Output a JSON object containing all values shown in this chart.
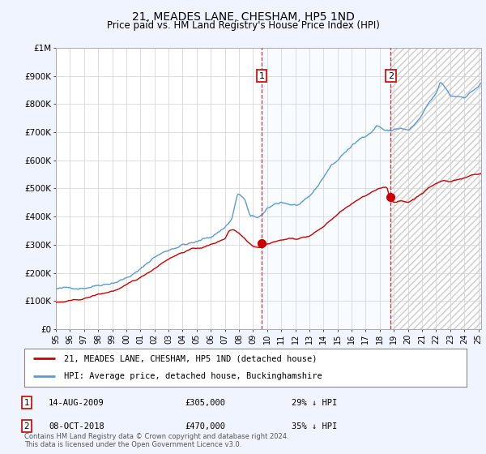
{
  "title": "21, MEADES LANE, CHESHAM, HP5 1ND",
  "subtitle": "Price paid vs. HM Land Registry's House Price Index (HPI)",
  "ytick_labels": [
    "£0",
    "£100K",
    "£200K",
    "£300K",
    "£400K",
    "£500K",
    "£600K",
    "£700K",
    "£800K",
    "£900K",
    "£1M"
  ],
  "yticks": [
    0,
    100000,
    200000,
    300000,
    400000,
    500000,
    600000,
    700000,
    800000,
    900000,
    1000000
  ],
  "hpi_color": "#5b9bd5",
  "price_color": "#cc0000",
  "annotation1_label": "1",
  "annotation1_date": "14-AUG-2009",
  "annotation1_price": "£305,000",
  "annotation1_hpi": "29% ↓ HPI",
  "annotation2_label": "2",
  "annotation2_date": "08-OCT-2018",
  "annotation2_price": "£470,000",
  "annotation2_hpi": "35% ↓ HPI",
  "legend_line1": "21, MEADES LANE, CHESHAM, HP5 1ND (detached house)",
  "legend_line2": "HPI: Average price, detached house, Buckinghamshire",
  "footer": "Contains HM Land Registry data © Crown copyright and database right 2024.\nThis data is licensed under the Open Government Licence v3.0.",
  "transaction1_year": 2009.62,
  "transaction1_price": 305000,
  "transaction2_year": 2018.77,
  "transaction2_price": 470000,
  "xlim_start": 1995.0,
  "xlim_end": 2025.2,
  "ylim": [
    0,
    1000000
  ],
  "background_color": "#f0f4ff",
  "plot_bg_color": "#ffffff",
  "shade_color": "#ddeeff",
  "hatch_color": "#cccccc"
}
